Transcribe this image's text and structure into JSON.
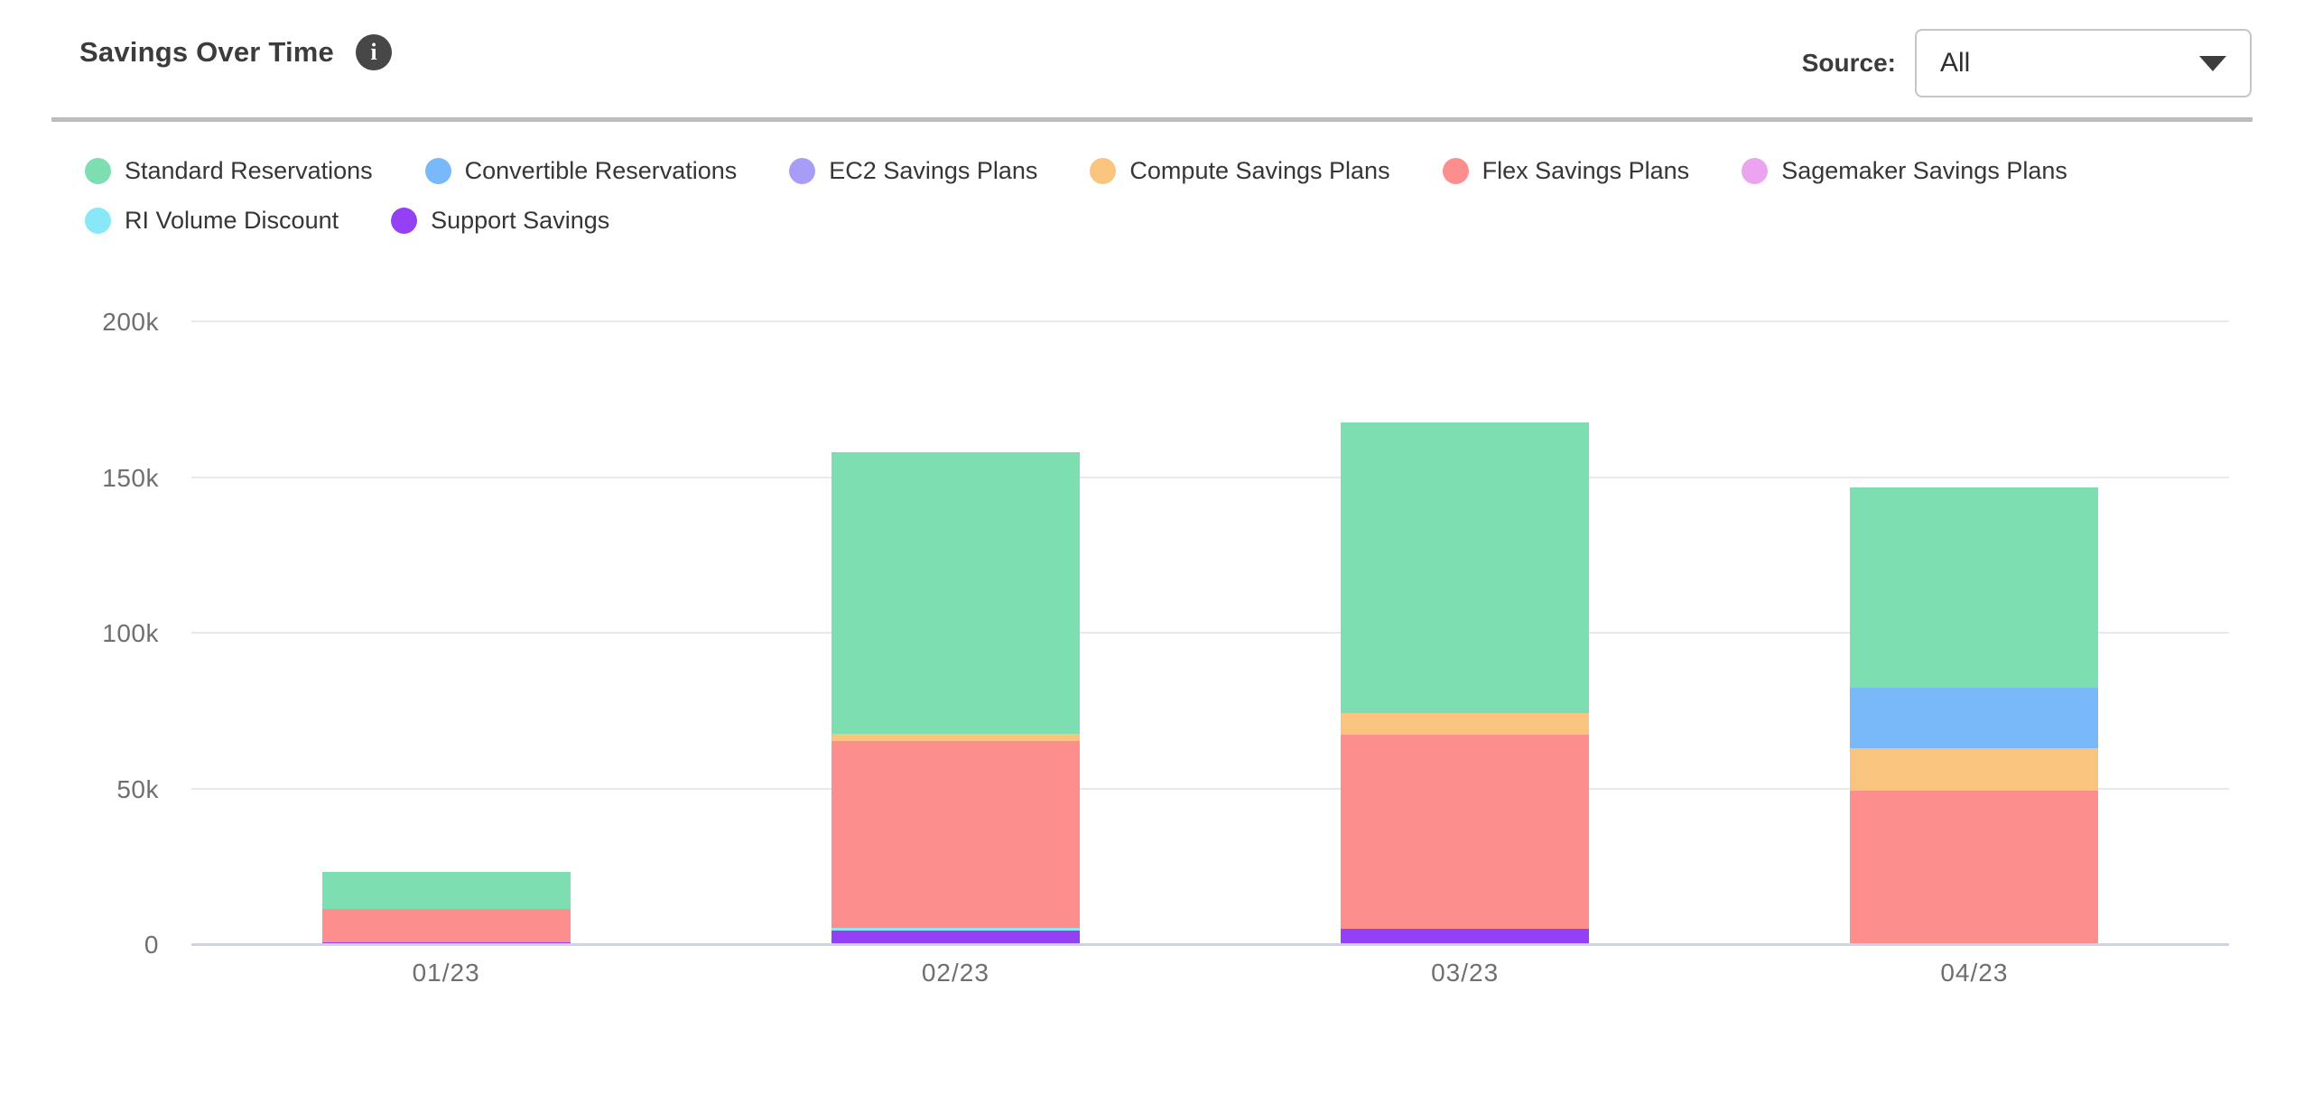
{
  "header": {
    "title": "Savings Over Time",
    "info_glyph": "i",
    "source_label": "Source:",
    "source_value": "All"
  },
  "colors": {
    "axis_line": "#cdd3ea",
    "gridline": "#e9e9e9",
    "axis_text": "#6f6f6f",
    "title_text": "#3c3c3c",
    "divider": "#bdbdbd",
    "info_badge_bg": "#474747"
  },
  "chart_data": {
    "type": "bar",
    "stacked": true,
    "title": "Savings Over Time",
    "xlabel": "",
    "ylabel": "",
    "ylim": [
      0,
      200000
    ],
    "y_ticks": [
      "0",
      "50k",
      "100k",
      "150k",
      "200k"
    ],
    "grid": "horizontal",
    "legend_position": "top",
    "stack_order_bottom_to_top": "reverse of legend order",
    "categories": [
      "01/23",
      "02/23",
      "03/23",
      "04/23"
    ],
    "series": [
      {
        "name": "Standard Reservations",
        "color": "#7cdeb1",
        "values": [
          12000,
          90500,
          93400,
          64500
        ]
      },
      {
        "name": "Convertible Reservations",
        "color": "#79b8f9",
        "values": [
          0,
          0,
          0,
          19300
        ]
      },
      {
        "name": "EC2 Savings Plans",
        "color": "#a89df6",
        "values": [
          0,
          0,
          0,
          0
        ]
      },
      {
        "name": "Compute Savings Plans",
        "color": "#f9c47d",
        "values": [
          0,
          2200,
          6800,
          13600
        ]
      },
      {
        "name": "Flex Savings Plans",
        "color": "#fd8e8e",
        "values": [
          10500,
          60000,
          62300,
          49700
        ]
      },
      {
        "name": "Sagemaker Savings Plans",
        "color": "#eba4ef",
        "values": [
          0,
          0,
          0,
          0
        ]
      },
      {
        "name": "RI Volume Discount",
        "color": "#89e7f8",
        "values": [
          0,
          1000,
          0,
          0
        ]
      },
      {
        "name": "Support Savings",
        "color": "#9440f5",
        "values": [
          1000,
          4500,
          5300,
          0
        ]
      }
    ]
  }
}
